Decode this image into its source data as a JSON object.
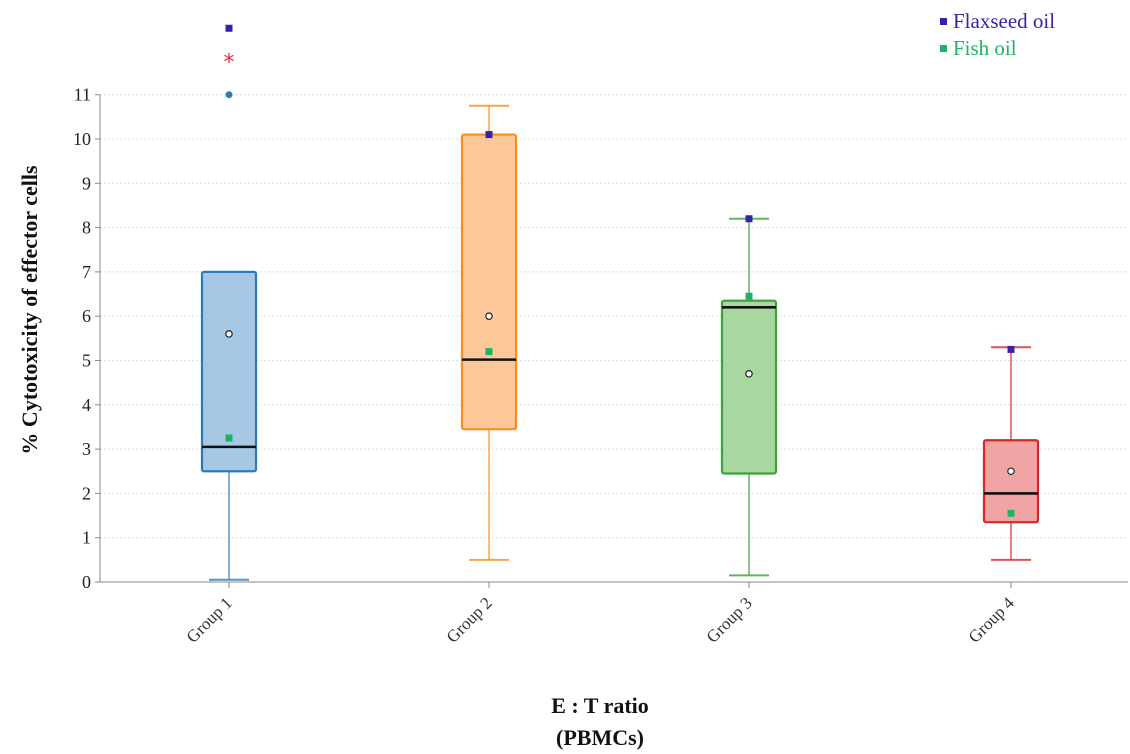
{
  "chart_data": {
    "type": "box",
    "xlabel": "E : T ratio",
    "xlabel_sub": "(PBMCs)",
    "ylabel": "% Cytotoxicity of effector cells",
    "ylim": [
      0,
      11
    ],
    "yticks": [
      0,
      1,
      2,
      3,
      4,
      5,
      6,
      7,
      8,
      9,
      10,
      11
    ],
    "grid": "horizontal",
    "legend_position": "top-right",
    "categories": [
      "Group 1",
      "Group 2",
      "Group 3",
      "Group 4"
    ],
    "boxes": [
      {
        "category": "Group 1",
        "whisker_low": 0.05,
        "q1": 2.5,
        "median": 3.05,
        "q3": 7.0,
        "whisker_high": null,
        "mean": 5.6,
        "color": "#2c7bb6",
        "fill": "#a6c8e4"
      },
      {
        "category": "Group 2",
        "whisker_low": 0.5,
        "q1": 3.45,
        "median": 5.02,
        "q3": 10.1,
        "whisker_high": 10.75,
        "mean": 6.0,
        "color": "#ff8c1a",
        "fill": "#fdc899"
      },
      {
        "category": "Group 3",
        "whisker_low": 0.15,
        "q1": 2.45,
        "median": 6.2,
        "q3": 6.35,
        "whisker_high": 8.2,
        "mean": 4.7,
        "color": "#3aa33a",
        "fill": "#a8d8a0"
      },
      {
        "category": "Group 4",
        "whisker_low": 0.5,
        "q1": 1.35,
        "median": 2.0,
        "q3": 3.2,
        "whisker_high": 5.3,
        "mean": 2.5,
        "color": "#d62728",
        "fill": "#f0a4a4"
      }
    ],
    "outliers": [
      {
        "category": "Group 1",
        "y": 11.0,
        "shape": "dot",
        "color": "#2c7bb6"
      },
      {
        "category": "Group 1",
        "y": 11.75,
        "shape": "star",
        "color": "#e8283c"
      },
      {
        "category": "Group 1",
        "y": 12.5,
        "shape": "square",
        "color": "#3a1fa8"
      }
    ],
    "series": [
      {
        "name": "Flaxseed oil",
        "color": "#3a1fa8",
        "points": [
          {
            "category": "Group 2",
            "y": 10.1
          },
          {
            "category": "Group 3",
            "y": 8.2
          },
          {
            "category": "Group 4",
            "y": 5.25
          }
        ]
      },
      {
        "name": "Fish oil",
        "color": "#1db366",
        "points": [
          {
            "category": "Group 1",
            "y": 3.25
          },
          {
            "category": "Group 2",
            "y": 5.2
          },
          {
            "category": "Group 3",
            "y": 6.45
          },
          {
            "category": "Group 4",
            "y": 1.55
          }
        ]
      }
    ]
  }
}
